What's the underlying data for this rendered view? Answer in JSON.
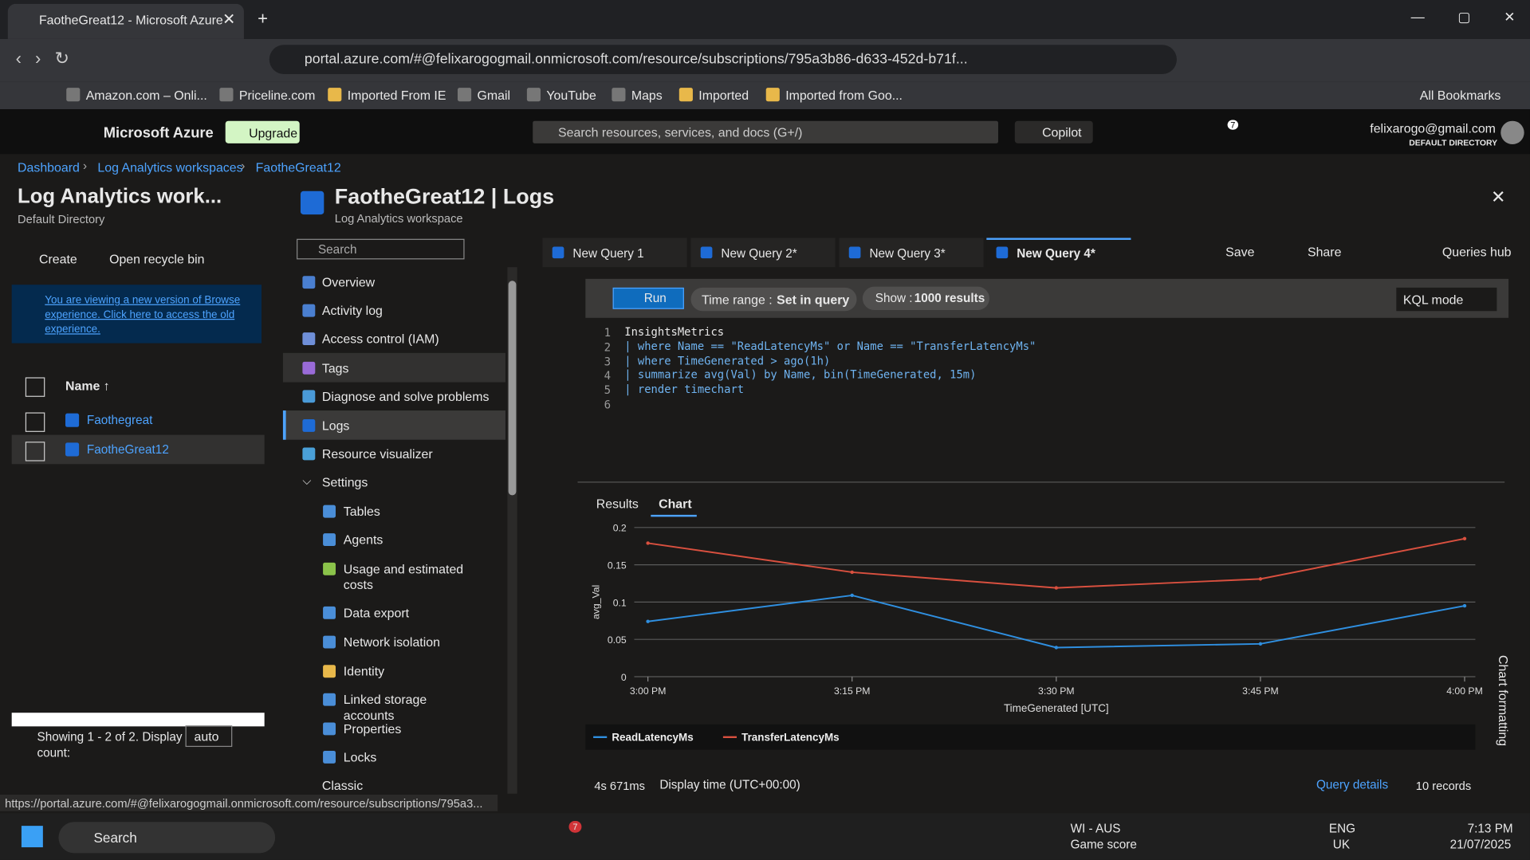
{
  "browser": {
    "tab_title": "FaotheGreat12 - Microsoft Azure",
    "url": "portal.azure.com/#@felixarogogmail.onmicrosoft.com/resource/subscriptions/795a3b86-d633-452d-b71f...",
    "bookmarks": [
      "Amazon.com – Onli...",
      "Priceline.com",
      "Imported From IE",
      "Gmail",
      "YouTube",
      "Maps",
      "Imported",
      "Imported from Goo..."
    ],
    "all_bookmarks": "All Bookmarks",
    "status_url": "https://portal.azure.com/#@felixarogogmail.onmicrosoft.com/resource/subscriptions/795a3..."
  },
  "portal": {
    "brand": "Microsoft Azure",
    "upgrade": "Upgrade",
    "search": "Search resources, services, and docs (G+/)",
    "copilot": "Copilot",
    "notifications": "7",
    "user": "felixarogo@gmail.com",
    "directory": "DEFAULT DIRECTORY"
  },
  "breadcrumb": [
    "Dashboard",
    "Log Analytics workspaces",
    "FaotheGreat12"
  ],
  "browse": {
    "title": "Log Analytics work...",
    "subtitle": "Default Directory",
    "create": "Create",
    "recycle": "Open recycle bin",
    "notice": "You are viewing a new version of Browse experience. Click here to access the old experience.",
    "column": "Name ↑",
    "items": [
      "Faothegreat",
      "FaotheGreat12"
    ],
    "showing": "Showing 1 - 2 of 2. Display count:",
    "count": "auto"
  },
  "resource": {
    "title": "FaotheGreat12 | Logs",
    "subtitle": "Log Analytics workspace",
    "search": "Search",
    "menu": [
      "Overview",
      "Activity log",
      "Access control (IAM)",
      "Tags",
      "Diagnose and solve problems",
      "Logs",
      "Resource visualizer"
    ],
    "settings": "Settings",
    "settings_items": [
      "Tables",
      "Agents",
      "Usage and estimated costs",
      "Data export",
      "Network isolation",
      "Identity",
      "Linked storage accounts",
      "Properties",
      "Locks"
    ],
    "classic": "Classic"
  },
  "query": {
    "tabs": [
      "New Query 1",
      "New Query 2*",
      "New Query 3*",
      "New Query 4*"
    ],
    "save": "Save",
    "share": "Share",
    "queries_hub": "Queries hub",
    "run": "Run",
    "time_range_label": "Time range :",
    "time_range": "Set in query",
    "show_label": "Show :",
    "show": "1000 results",
    "mode": "KQL mode",
    "line_numbers": [
      1,
      2,
      3,
      4,
      5,
      6
    ],
    "lines": [
      "InsightsMetrics",
      "| where Name == \"ReadLatencyMs\" or Name == \"TransferLatencyMs\"",
      "| where TimeGenerated > ago(1h)",
      "| summarize avg(Val) by Name, bin(TimeGenerated, 15m)",
      "| render timechart"
    ],
    "result_tabs": [
      "Results",
      "Chart"
    ],
    "duration": "4s 671ms",
    "display_time": "Display time (UTC+00:00)",
    "query_details": "Query details",
    "records": "10 records",
    "chart_formatting": "Chart formatting"
  },
  "chart": {
    "type": "line",
    "x_label": "TimeGenerated [UTC]",
    "y_label": "avg_Val",
    "categories": [
      "3:00 PM",
      "3:15 PM",
      "3:30 PM",
      "3:45 PM",
      "4:00 PM"
    ],
    "series": [
      {
        "name": "ReadLatencyMs",
        "color": "#2f8fe0",
        "values": [
          0.074,
          0.109,
          0.039,
          0.044,
          0.095
        ]
      },
      {
        "name": "TransferLatencyMs",
        "color": "#d9503f",
        "values": [
          0.179,
          0.14,
          0.119,
          0.131,
          0.185
        ]
      }
    ],
    "ylim": [
      0,
      0.2
    ],
    "yticks": [
      0,
      0.05,
      0.1,
      0.15,
      0.2
    ],
    "grid": true
  },
  "taskbar": {
    "search": "Search",
    "teams_badge": "7",
    "game": "WI - AUS",
    "game_sub": "Game score",
    "lang": "ENG",
    "region": "UK",
    "time": "7:13 PM",
    "date": "21/07/2025"
  }
}
